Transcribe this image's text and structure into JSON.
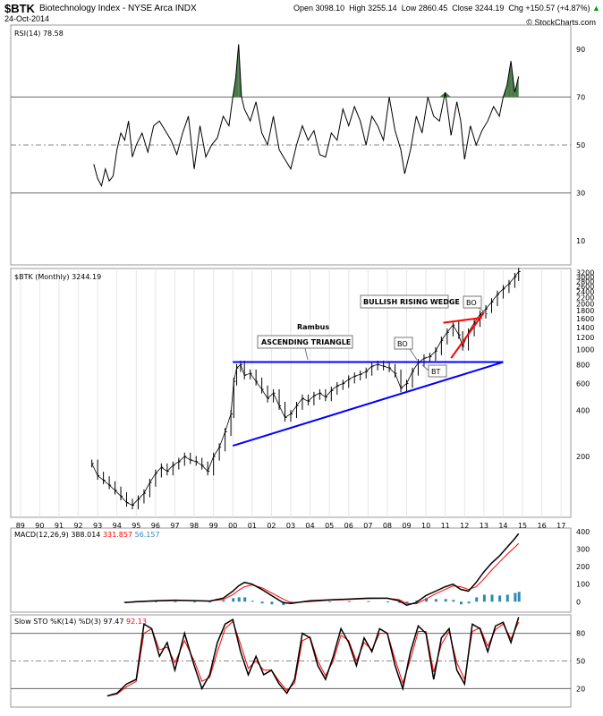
{
  "header": {
    "symbol": "$BTK",
    "name": "Biotechnology Index - NYSE Arca INDX",
    "date": "24-Oct-2014",
    "open_label": "Open",
    "open": "3098.10",
    "high_label": "High",
    "high": "3255.14",
    "low_label": "Low",
    "low": "2860.45",
    "close_label": "Close",
    "close": "3244.19",
    "chg_label": "Chg",
    "chg": "+150.57 (+4.87%)",
    "chg_arrow": "▲",
    "credit": "© StockCharts.com"
  },
  "colors": {
    "price": "#000000",
    "trendline": "#0000ff",
    "wedge": "#ff0000",
    "rsi_fill": "#4a7a4a",
    "macd_line": "#000000",
    "macd_signal": "#ff0000",
    "macd_hist": "#2a8ab5",
    "sto_k": "#000000",
    "sto_d": "#ff0000"
  },
  "chart_data": [
    {
      "type": "line",
      "panel": "rsi",
      "legend": "RSI(14) 78.58",
      "ylim": [
        0,
        100
      ],
      "y_ticks": [
        "90",
        "70",
        "50",
        "30",
        "10"
      ],
      "ref_lines": [
        70,
        50,
        30
      ],
      "x": [
        1992.8,
        1993.0,
        1993.2,
        1993.4,
        1993.6,
        1993.8,
        1994.0,
        1994.2,
        1994.4,
        1994.6,
        1994.8,
        1995.0,
        1995.3,
        1995.6,
        1995.9,
        1996.2,
        1996.5,
        1996.8,
        1997.1,
        1997.4,
        1997.7,
        1998.0,
        1998.3,
        1998.6,
        1998.9,
        1999.2,
        1999.5,
        1999.8,
        2000.0,
        2000.15,
        2000.3,
        2000.45,
        2000.6,
        2000.9,
        2001.2,
        2001.5,
        2001.8,
        2002.1,
        2002.4,
        2002.7,
        2003.0,
        2003.3,
        2003.6,
        2003.9,
        2004.2,
        2004.5,
        2004.8,
        2005.1,
        2005.4,
        2005.7,
        2006.0,
        2006.3,
        2006.6,
        2006.9,
        2007.2,
        2007.5,
        2007.8,
        2008.1,
        2008.4,
        2008.7,
        2008.9,
        2009.2,
        2009.5,
        2009.8,
        2010.1,
        2010.4,
        2010.7,
        2011.0,
        2011.3,
        2011.6,
        2011.8,
        2012.0,
        2012.3,
        2012.6,
        2012.9,
        2013.2,
        2013.5,
        2013.8,
        2014.0,
        2014.2,
        2014.4,
        2014.6,
        2014.8
      ],
      "values": [
        42,
        36,
        33,
        40,
        35,
        37,
        48,
        55,
        52,
        60,
        45,
        50,
        55,
        47,
        58,
        60,
        56,
        52,
        46,
        55,
        62,
        40,
        58,
        45,
        50,
        53,
        62,
        58,
        70,
        78,
        92,
        70,
        65,
        60,
        68,
        55,
        50,
        62,
        48,
        44,
        40,
        50,
        58,
        52,
        56,
        46,
        45,
        55,
        52,
        65,
        58,
        66,
        60,
        50,
        62,
        58,
        52,
        70,
        56,
        48,
        38,
        48,
        62,
        55,
        70,
        62,
        60,
        72,
        54,
        68,
        60,
        44,
        58,
        50,
        56,
        60,
        66,
        62,
        70,
        75,
        85,
        72,
        78.58
      ]
    },
    {
      "type": "line",
      "panel": "price",
      "legend": "$BTK (Monthly) 3244.19",
      "scale": "log",
      "ylim": [
        80,
        3400
      ],
      "y_ticks": [
        "3200",
        "3000",
        "2800",
        "2600",
        "2400",
        "2200",
        "2000",
        "1800",
        "1600",
        "1400",
        "1200",
        "1000",
        "800",
        "600",
        "400",
        "200"
      ],
      "x_ticks": [
        "89",
        "90",
        "91",
        "92",
        "93",
        "94",
        "95",
        "96",
        "97",
        "98",
        "99",
        "00",
        "01",
        "02",
        "03",
        "04",
        "05",
        "06",
        "07",
        "08",
        "09",
        "10",
        "11",
        "12",
        "13",
        "14",
        "15",
        "16",
        "17"
      ],
      "x": [
        1992.7,
        1993.0,
        1993.3,
        1993.6,
        1993.9,
        1994.2,
        1994.5,
        1994.8,
        1995.1,
        1995.4,
        1995.7,
        1996.0,
        1996.3,
        1996.6,
        1996.9,
        1997.2,
        1997.5,
        1997.8,
        1998.1,
        1998.4,
        1998.7,
        1999.0,
        1999.3,
        1999.6,
        1999.9,
        2000.05,
        2000.2,
        2000.4,
        2000.6,
        2000.9,
        2001.2,
        2001.5,
        2001.8,
        2002.1,
        2002.4,
        2002.7,
        2003.0,
        2003.3,
        2003.6,
        2003.9,
        2004.2,
        2004.5,
        2004.8,
        2005.1,
        2005.4,
        2005.7,
        2006.0,
        2006.3,
        2006.6,
        2006.9,
        2007.2,
        2007.5,
        2007.8,
        2008.1,
        2008.4,
        2008.7,
        2009.0,
        2009.3,
        2009.6,
        2009.9,
        2010.2,
        2010.5,
        2010.8,
        2011.1,
        2011.4,
        2011.7,
        2011.9,
        2012.2,
        2012.5,
        2012.8,
        2013.1,
        2013.4,
        2013.7,
        2014.0,
        2014.3,
        2014.6,
        2014.8
      ],
      "values": [
        180,
        150,
        140,
        130,
        120,
        110,
        100,
        96,
        105,
        115,
        135,
        155,
        170,
        160,
        175,
        185,
        200,
        190,
        185,
        175,
        160,
        200,
        230,
        290,
        380,
        620,
        760,
        800,
        680,
        700,
        620,
        550,
        480,
        520,
        430,
        360,
        380,
        430,
        480,
        460,
        500,
        520,
        490,
        540,
        580,
        600,
        640,
        670,
        690,
        720,
        780,
        800,
        780,
        760,
        700,
        560,
        600,
        720,
        820,
        880,
        900,
        980,
        1150,
        1300,
        1450,
        1250,
        1050,
        1300,
        1500,
        1700,
        1850,
        2050,
        2300,
        2500,
        2700,
        3000,
        3244.19
      ],
      "annotations": {
        "rambus": "Rambus",
        "ascending_triangle": "ASCENDING TRIANGLE",
        "bullish_rising_wedge": "BULLISH RISING WEDGE",
        "bo1": "BO",
        "bt": "BT",
        "bo2": "BO"
      },
      "resistance": {
        "x": [
          2000.0,
          2014.0
        ],
        "y": [
          830,
          830
        ]
      },
      "support": {
        "x": [
          2000.0,
          2014.0
        ],
        "y": [
          235,
          830
        ]
      },
      "wedge_upper": {
        "x": [
          2010.9,
          2012.9
        ],
        "y": [
          1500,
          1620
        ]
      },
      "wedge_lower": {
        "x": [
          2011.3,
          2013.0
        ],
        "y": [
          880,
          1750
        ]
      }
    },
    {
      "type": "line",
      "panel": "macd",
      "legend": "MACD(12,26,9)",
      "legend_macd": "388.014",
      "legend_signal": "331.857",
      "legend_hist": "56.157",
      "ylim": [
        -60,
        420
      ],
      "y_ticks": [
        "400",
        "300",
        "200",
        "100",
        "0"
      ],
      "x": [
        1994.4,
        1995.0,
        1996.0,
        1997.0,
        1998.0,
        1998.8,
        1999.5,
        2000.0,
        2000.3,
        2000.6,
        2001.0,
        2001.5,
        2002.0,
        2002.6,
        2003.0,
        2004.0,
        2005.0,
        2006.0,
        2007.0,
        2008.0,
        2008.6,
        2009.0,
        2009.5,
        2010.0,
        2010.5,
        2011.0,
        2011.4,
        2011.8,
        2012.2,
        2012.6,
        2013.0,
        2013.4,
        2013.8,
        2014.2,
        2014.6,
        2014.8
      ],
      "macd": [
        -5,
        0,
        5,
        8,
        6,
        3,
        20,
        60,
        90,
        110,
        100,
        70,
        35,
        -5,
        -10,
        5,
        10,
        15,
        20,
        20,
        5,
        -20,
        -5,
        35,
        60,
        85,
        100,
        70,
        60,
        110,
        170,
        220,
        260,
        310,
        360,
        388.014
      ],
      "signal": [
        -5,
        -2,
        3,
        6,
        6,
        4,
        12,
        40,
        65,
        85,
        95,
        80,
        50,
        15,
        -5,
        0,
        8,
        12,
        17,
        19,
        12,
        -10,
        -12,
        15,
        45,
        70,
        90,
        85,
        70,
        85,
        130,
        180,
        225,
        270,
        310,
        331.857
      ],
      "hist": [
        0,
        2,
        2,
        2,
        0,
        -1,
        8,
        20,
        25,
        25,
        5,
        -10,
        -15,
        -20,
        -5,
        5,
        2,
        3,
        3,
        1,
        -7,
        -10,
        7,
        20,
        15,
        15,
        10,
        -15,
        -10,
        25,
        40,
        40,
        35,
        40,
        50,
        56.157
      ]
    },
    {
      "type": "line",
      "panel": "slow_sto",
      "legend": "Slow STO %K(14) %D(3)",
      "legend_k": "97.47",
      "legend_d": "92.13",
      "ylim": [
        0,
        100
      ],
      "y_ticks": [
        "80",
        "50",
        "20"
      ],
      "ref_lines": [
        80,
        50,
        20
      ],
      "x": [
        1993.5,
        1994.0,
        1994.5,
        1995.0,
        1995.4,
        1995.8,
        1996.2,
        1996.6,
        1997.0,
        1997.5,
        1998.0,
        1998.4,
        1998.8,
        1999.2,
        1999.6,
        2000.0,
        2000.4,
        2000.8,
        2001.2,
        2001.6,
        2002.0,
        2002.4,
        2002.8,
        2003.2,
        2003.6,
        2004.0,
        2004.4,
        2004.8,
        2005.2,
        2005.6,
        2006.0,
        2006.4,
        2006.8,
        2007.2,
        2007.6,
        2008.0,
        2008.4,
        2008.8,
        2009.2,
        2009.6,
        2010.0,
        2010.4,
        2010.8,
        2011.2,
        2011.6,
        2012.0,
        2012.4,
        2012.8,
        2013.2,
        2013.6,
        2014.0,
        2014.4,
        2014.8
      ],
      "k": [
        12,
        15,
        25,
        30,
        90,
        85,
        55,
        70,
        40,
        80,
        45,
        20,
        35,
        70,
        90,
        95,
        60,
        35,
        55,
        35,
        40,
        25,
        15,
        30,
        80,
        75,
        45,
        30,
        55,
        85,
        70,
        45,
        75,
        60,
        85,
        80,
        45,
        20,
        60,
        88,
        80,
        30,
        75,
        85,
        40,
        25,
        90,
        85,
        60,
        88,
        92,
        70,
        97.47
      ],
      "d": [
        12,
        14,
        22,
        28,
        80,
        85,
        62,
        65,
        48,
        72,
        50,
        28,
        32,
        60,
        85,
        93,
        68,
        42,
        50,
        40,
        40,
        28,
        18,
        26,
        72,
        76,
        50,
        34,
        50,
        78,
        72,
        50,
        70,
        62,
        80,
        80,
        52,
        26,
        52,
        82,
        82,
        38,
        68,
        82,
        48,
        30,
        82,
        86,
        66,
        84,
        90,
        74,
        92.13
      ]
    }
  ]
}
